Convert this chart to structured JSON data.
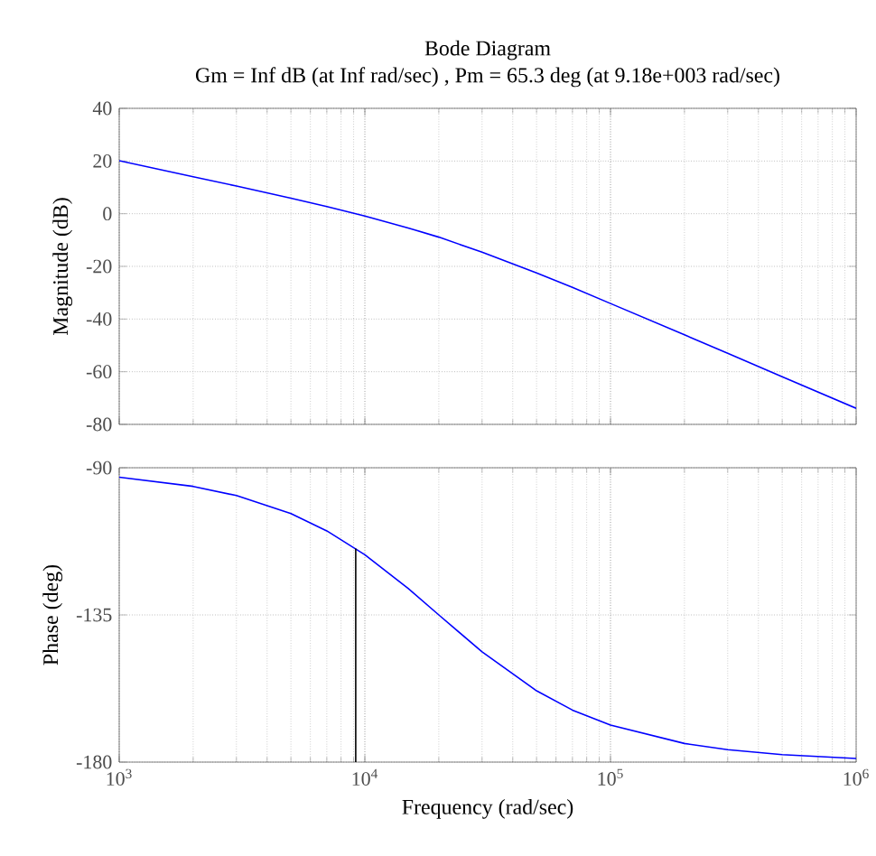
{
  "chart_data": [
    {
      "type": "line",
      "title": "Bode Diagram",
      "subtitle": "Gm = Inf dB (at Inf rad/sec) ,  Pm = 65.3 deg (at 9.18e+003 rad/sec)",
      "ylabel": "Magnitude (dB)",
      "x": [
        1000,
        2000,
        3000,
        5000,
        7000,
        10000,
        15000,
        20000,
        30000,
        50000,
        70000,
        100000,
        200000,
        300000,
        500000,
        1000000
      ],
      "series": [
        {
          "color": "#0000ff",
          "values": [
            20.1,
            14.0,
            10.5,
            5.9,
            2.7,
            -0.9,
            -5.4,
            -8.9,
            -14.6,
            -22.5,
            -28.0,
            -34.1,
            -46.0,
            -53.0,
            -61.9,
            -73.9
          ]
        }
      ],
      "log": "x",
      "xlim": [
        1000,
        1000000
      ],
      "ylim": [
        -80,
        40
      ],
      "xticks": [
        {
          "value": 1000,
          "label": null
        },
        {
          "value": 10000,
          "label": null
        },
        {
          "value": 100000,
          "label": null
        },
        {
          "value": 1000000,
          "label": null
        }
      ],
      "yticks": [
        -80,
        -60,
        -40,
        -20,
        0,
        20,
        40
      ],
      "grid": true,
      "tick_labels": "y"
    },
    {
      "type": "line",
      "xlabel": "Frequency  (rad/sec)",
      "ylabel": "Phase (deg)",
      "x": [
        1000,
        2000,
        3000,
        5000,
        7000,
        10000,
        15000,
        20000,
        30000,
        50000,
        70000,
        100000,
        200000,
        300000,
        500000,
        1000000
      ],
      "series": [
        {
          "color": "#0000ff",
          "values": [
            -92.9,
            -95.7,
            -98.5,
            -104.0,
            -109.3,
            -116.6,
            -126.9,
            -135.0,
            -146.3,
            -158.2,
            -164.1,
            -168.7,
            -174.3,
            -176.2,
            -177.7,
            -178.9
          ]
        },
        {
          "color": "#000000",
          "x": [
            9180,
            9180
          ],
          "values": [
            -180,
            -114.7
          ]
        }
      ],
      "log": "x",
      "xlim": [
        1000,
        1000000
      ],
      "ylim": [
        -180,
        -90
      ],
      "xticks": [
        {
          "value": 1000,
          "label": "10$^{3}$"
        },
        {
          "value": 10000,
          "label": "10$^{4}$"
        },
        {
          "value": 100000,
          "label": "10$^{5}$"
        },
        {
          "value": 1000000,
          "label": "10$^{6}$"
        }
      ],
      "yticks": [
        -180,
        -135,
        -90
      ],
      "grid": true
    }
  ]
}
